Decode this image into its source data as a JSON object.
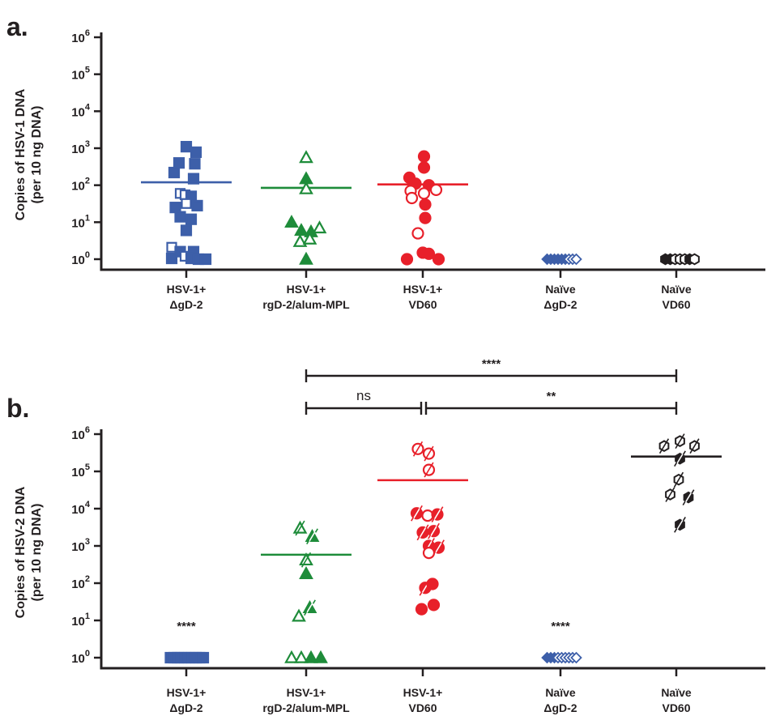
{
  "colors": {
    "blue": "#3d5fa9",
    "green": "#1e8c3a",
    "red": "#e8202a",
    "black": "#231f20"
  },
  "categories": [
    [
      "HSV-1+",
      "ΔgD-2"
    ],
    [
      "HSV-1+",
      "rgD-2/alum-MPL"
    ],
    [
      "HSV-1+",
      "VD60"
    ],
    [
      "Naïve",
      "ΔgD-2"
    ],
    [
      "Naïve",
      "VD60"
    ]
  ],
  "chart_data": [
    {
      "panel": "a.",
      "type": "scatter",
      "ylabel": [
        "Copies of HSV-1 DNA",
        "(per 10 ng DNA)"
      ],
      "yscale": "log10",
      "ylim": [
        1,
        1000000
      ],
      "yticks": [
        {
          "base": "10",
          "exp": "0"
        },
        {
          "base": "10",
          "exp": "1"
        },
        {
          "base": "10",
          "exp": "2"
        },
        {
          "base": "10",
          "exp": "3"
        },
        {
          "base": "10",
          "exp": "4"
        },
        {
          "base": "10",
          "exp": "5"
        },
        {
          "base": "10",
          "exp": "6"
        }
      ],
      "groups": [
        {
          "category": 0,
          "color": "blue",
          "marker": "square",
          "mean": 120,
          "points": [
            {
              "x": 0.0,
              "y": 1100,
              "filled": true
            },
            {
              "x": 0.16,
              "y": 780,
              "filled": true
            },
            {
              "x": -0.12,
              "y": 400,
              "filled": true
            },
            {
              "x": 0.14,
              "y": 380,
              "filled": true
            },
            {
              "x": -0.2,
              "y": 220,
              "filled": true
            },
            {
              "x": 0.12,
              "y": 150,
              "filled": true
            },
            {
              "x": -0.1,
              "y": 60,
              "filled": false
            },
            {
              "x": -0.02,
              "y": 55,
              "filled": false
            },
            {
              "x": 0.08,
              "y": 50,
              "filled": true
            },
            {
              "x": 0.0,
              "y": 32,
              "filled": false
            },
            {
              "x": 0.18,
              "y": 28,
              "filled": true
            },
            {
              "x": -0.18,
              "y": 25,
              "filled": true
            },
            {
              "x": -0.1,
              "y": 14,
              "filled": true
            },
            {
              "x": 0.08,
              "y": 12,
              "filled": true
            },
            {
              "x": 0.0,
              "y": 6,
              "filled": true
            },
            {
              "x": -0.24,
              "y": 2.1,
              "filled": false
            },
            {
              "x": -0.1,
              "y": 1.6,
              "filled": true
            },
            {
              "x": 0.12,
              "y": 1.6,
              "filled": true
            },
            {
              "x": -0.02,
              "y": 1.2,
              "filled": false
            },
            {
              "x": -0.24,
              "y": 1.05,
              "filled": true
            },
            {
              "x": 0.08,
              "y": 1.05,
              "filled": true
            },
            {
              "x": 0.2,
              "y": 1.0,
              "filled": true
            },
            {
              "x": 0.32,
              "y": 1.0,
              "filled": true
            }
          ]
        },
        {
          "category": 1,
          "color": "green",
          "marker": "triangle",
          "mean": 85,
          "points": [
            {
              "x": 0.0,
              "y": 560,
              "filled": false
            },
            {
              "x": 0.0,
              "y": 150,
              "filled": true
            },
            {
              "x": 0.0,
              "y": 80,
              "filled": false
            },
            {
              "x": -0.24,
              "y": 10,
              "filled": true
            },
            {
              "x": -0.08,
              "y": 6,
              "filled": true
            },
            {
              "x": 0.08,
              "y": 5.5,
              "filled": true
            },
            {
              "x": 0.22,
              "y": 7,
              "filled": false
            },
            {
              "x": -0.1,
              "y": 3,
              "filled": false
            },
            {
              "x": 0.06,
              "y": 3.5,
              "filled": false
            },
            {
              "x": 0.0,
              "y": 1.0,
              "filled": true
            }
          ]
        },
        {
          "category": 2,
          "color": "red",
          "marker": "circle",
          "mean": 105,
          "points": [
            {
              "x": 0.02,
              "y": 600,
              "filled": true
            },
            {
              "x": 0.02,
              "y": 300,
              "filled": true
            },
            {
              "x": -0.22,
              "y": 160,
              "filled": true
            },
            {
              "x": -0.12,
              "y": 110,
              "filled": true
            },
            {
              "x": 0.1,
              "y": 100,
              "filled": true
            },
            {
              "x": -0.2,
              "y": 70,
              "filled": false
            },
            {
              "x": 0.02,
              "y": 60,
              "filled": false
            },
            {
              "x": 0.22,
              "y": 75,
              "filled": false
            },
            {
              "x": -0.18,
              "y": 45,
              "filled": false
            },
            {
              "x": 0.04,
              "y": 30,
              "filled": true
            },
            {
              "x": 0.04,
              "y": 13,
              "filled": true
            },
            {
              "x": -0.08,
              "y": 5,
              "filled": false
            },
            {
              "x": 0.1,
              "y": 1.4,
              "filled": true
            },
            {
              "x": -0.26,
              "y": 1.0,
              "filled": true
            },
            {
              "x": 0.0,
              "y": 1.5,
              "filled": true
            },
            {
              "x": 0.26,
              "y": 1.0,
              "filled": true
            }
          ]
        },
        {
          "category": 3,
          "color": "blue",
          "marker": "diamond",
          "mean": 1,
          "points": [
            {
              "x": -0.22,
              "y": 1,
              "filled": true
            },
            {
              "x": -0.16,
              "y": 1,
              "filled": true
            },
            {
              "x": -0.1,
              "y": 1,
              "filled": true
            },
            {
              "x": -0.04,
              "y": 1,
              "filled": true
            },
            {
              "x": 0.02,
              "y": 1,
              "filled": true
            },
            {
              "x": 0.08,
              "y": 1,
              "filled": true
            },
            {
              "x": 0.14,
              "y": 1,
              "filled": false
            },
            {
              "x": 0.2,
              "y": 1,
              "filled": false
            },
            {
              "x": 0.26,
              "y": 1,
              "filled": false
            }
          ]
        },
        {
          "category": 4,
          "color": "black",
          "marker": "hexagon",
          "mean": 1,
          "points": [
            {
              "x": -0.18,
              "y": 1,
              "filled": true
            },
            {
              "x": -0.1,
              "y": 1,
              "filled": true
            },
            {
              "x": -0.02,
              "y": 1,
              "filled": false
            },
            {
              "x": 0.06,
              "y": 1,
              "filled": false
            },
            {
              "x": 0.14,
              "y": 1,
              "filled": false
            },
            {
              "x": 0.22,
              "y": 1,
              "filled": true
            },
            {
              "x": 0.3,
              "y": 1,
              "filled": false
            }
          ]
        }
      ],
      "annotations": []
    },
    {
      "panel": "b.",
      "type": "scatter",
      "ylabel": [
        "Copies of HSV-2 DNA",
        "(per 10 ng DNA)"
      ],
      "yscale": "log10",
      "ylim": [
        1,
        1000000
      ],
      "yticks": [
        {
          "base": "10",
          "exp": "0"
        },
        {
          "base": "10",
          "exp": "1"
        },
        {
          "base": "10",
          "exp": "2"
        },
        {
          "base": "10",
          "exp": "3"
        },
        {
          "base": "10",
          "exp": "4"
        },
        {
          "base": "10",
          "exp": "5"
        },
        {
          "base": "10",
          "exp": "6"
        }
      ],
      "groups": [
        {
          "category": 0,
          "color": "blue",
          "marker": "square",
          "mean": 1,
          "points": [
            {
              "x": -0.26,
              "y": 1,
              "filled": true
            },
            {
              "x": -0.2,
              "y": 1,
              "filled": true
            },
            {
              "x": -0.14,
              "y": 1,
              "filled": true
            },
            {
              "x": -0.08,
              "y": 1,
              "filled": true
            },
            {
              "x": -0.02,
              "y": 1,
              "filled": true
            },
            {
              "x": 0.04,
              "y": 1,
              "filled": true
            },
            {
              "x": 0.1,
              "y": 1,
              "filled": true
            },
            {
              "x": 0.16,
              "y": 1,
              "filled": true
            },
            {
              "x": 0.22,
              "y": 1,
              "filled": true
            },
            {
              "x": 0.28,
              "y": 1,
              "filled": true
            }
          ]
        },
        {
          "category": 1,
          "color": "green",
          "marker": "triangle",
          "mean": 580,
          "points": [
            {
              "x": -0.1,
              "y": 3000,
              "filled": false,
              "slash": true
            },
            {
              "x": 0.1,
              "y": 1800,
              "filled": true,
              "slash": true
            },
            {
              "x": 0.0,
              "y": 420,
              "filled": false,
              "slash": true
            },
            {
              "x": 0.0,
              "y": 180,
              "filled": true
            },
            {
              "x": 0.06,
              "y": 22,
              "filled": true,
              "slash": true
            },
            {
              "x": -0.12,
              "y": 13,
              "filled": false
            },
            {
              "x": -0.24,
              "y": 1,
              "filled": false
            },
            {
              "x": -0.08,
              "y": 1,
              "filled": false
            },
            {
              "x": 0.08,
              "y": 1,
              "filled": true
            },
            {
              "x": 0.24,
              "y": 1,
              "filled": true
            }
          ]
        },
        {
          "category": 2,
          "color": "red",
          "marker": "circle",
          "mean": 58000,
          "points": [
            {
              "x": -0.08,
              "y": 400000,
              "filled": false,
              "slash": true
            },
            {
              "x": 0.1,
              "y": 300000,
              "filled": false,
              "slash": true
            },
            {
              "x": 0.1,
              "y": 110000,
              "filled": false,
              "slash": true
            },
            {
              "x": -0.1,
              "y": 7500,
              "filled": true,
              "slash": true
            },
            {
              "x": 0.08,
              "y": 6500,
              "filled": false
            },
            {
              "x": 0.24,
              "y": 7000,
              "filled": true,
              "slash": true
            },
            {
              "x": 0.0,
              "y": 2300,
              "filled": true,
              "slash": true
            },
            {
              "x": 0.18,
              "y": 2500,
              "filled": true,
              "slash": true
            },
            {
              "x": 0.1,
              "y": 1000,
              "filled": true,
              "slash": true
            },
            {
              "x": 0.26,
              "y": 900,
              "filled": true,
              "slash": true
            },
            {
              "x": 0.1,
              "y": 650,
              "filled": false
            },
            {
              "x": 0.04,
              "y": 75,
              "filled": true,
              "slash": true
            },
            {
              "x": 0.16,
              "y": 95,
              "filled": true
            },
            {
              "x": -0.02,
              "y": 20,
              "filled": true
            },
            {
              "x": 0.18,
              "y": 26,
              "filled": true
            }
          ]
        },
        {
          "category": 3,
          "color": "blue",
          "marker": "diamond",
          "mean": 1,
          "points": [
            {
              "x": -0.22,
              "y": 1,
              "filled": true
            },
            {
              "x": -0.16,
              "y": 1,
              "filled": true
            },
            {
              "x": -0.1,
              "y": 1,
              "filled": true
            },
            {
              "x": -0.04,
              "y": 1,
              "filled": false
            },
            {
              "x": 0.02,
              "y": 1,
              "filled": false
            },
            {
              "x": 0.08,
              "y": 1,
              "filled": false
            },
            {
              "x": 0.14,
              "y": 1,
              "filled": false
            },
            {
              "x": 0.2,
              "y": 1,
              "filled": false
            },
            {
              "x": 0.26,
              "y": 1,
              "filled": false
            }
          ]
        },
        {
          "category": 4,
          "color": "black",
          "marker": "hexagon",
          "mean": 250000,
          "points": [
            {
              "x": -0.2,
              "y": 480000,
              "filled": false,
              "slash": true
            },
            {
              "x": 0.06,
              "y": 650000,
              "filled": false,
              "slash": true
            },
            {
              "x": 0.3,
              "y": 480000,
              "filled": false,
              "slash": true
            },
            {
              "x": 0.06,
              "y": 220000,
              "filled": true,
              "slash": true
            },
            {
              "x": 0.04,
              "y": 60000,
              "filled": false,
              "slash": true
            },
            {
              "x": -0.1,
              "y": 24000,
              "filled": false,
              "slash": true
            },
            {
              "x": 0.2,
              "y": 20000,
              "filled": true,
              "slash": true
            },
            {
              "x": 0.06,
              "y": 3700,
              "filled": true,
              "slash": true
            }
          ]
        }
      ],
      "annotations": [
        {
          "category": 0,
          "y": 10,
          "text": "****"
        },
        {
          "category": 3,
          "y": 10,
          "text": "****"
        }
      ],
      "brackets": [
        {
          "from": 1,
          "to": 4,
          "text": "****",
          "level": 2
        },
        {
          "from": 1,
          "to": 2,
          "text": "ns",
          "level": 1
        },
        {
          "from": 2,
          "to": 4,
          "text": "**",
          "level": 1
        }
      ]
    }
  ]
}
